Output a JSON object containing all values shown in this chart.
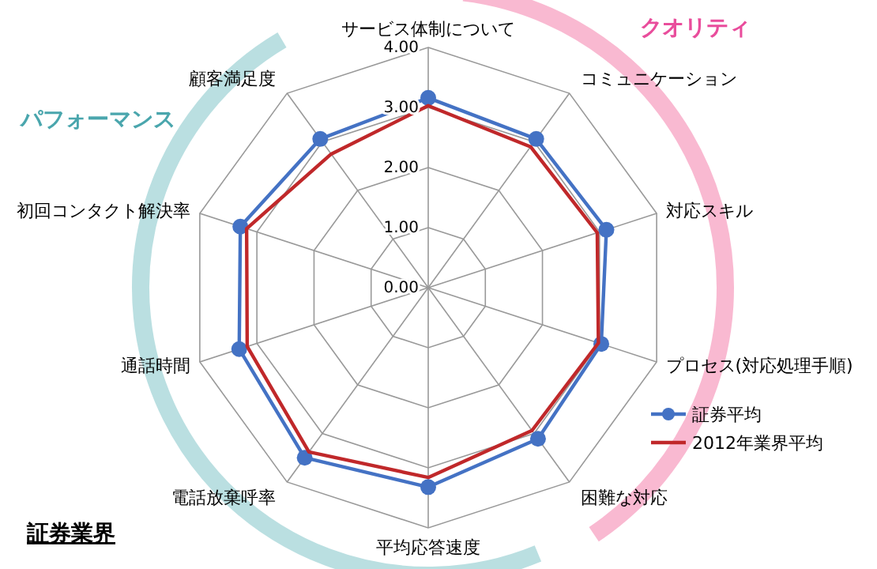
{
  "chart_data": {
    "type": "radar",
    "categories": [
      "サービス体制について",
      "コミュニケーション",
      "対応スキル",
      "プロセス(対応処理手順)",
      "困難な対応",
      "平均応答速度",
      "電話放棄呼率",
      "通話時間",
      "初回コンタクト解決率",
      "顧客満足度"
    ],
    "series": [
      {
        "name": "証券平均",
        "color": "#4472c4",
        "marker": "circle",
        "values": [
          3.16,
          3.06,
          3.12,
          3.03,
          3.11,
          3.32,
          3.5,
          3.31,
          3.29,
          3.06
        ]
      },
      {
        "name": "2012年業界平均",
        "color": "#c0282a",
        "marker": "none",
        "values": [
          3.03,
          2.9,
          2.96,
          2.98,
          2.94,
          3.16,
          3.38,
          3.17,
          3.18,
          2.75
        ]
      }
    ],
    "ylim": [
      0,
      4
    ],
    "yticks": [
      {
        "value": 0,
        "label": "0.00"
      },
      {
        "value": 1,
        "label": "1.00"
      },
      {
        "value": 2,
        "label": "2.00"
      },
      {
        "value": 3,
        "label": "3.00"
      },
      {
        "value": 4,
        "label": "4.00"
      }
    ],
    "grid": true,
    "legend": "right",
    "annotations": [
      "クオリティ",
      "パフォーマンス",
      "証券業界"
    ]
  }
}
